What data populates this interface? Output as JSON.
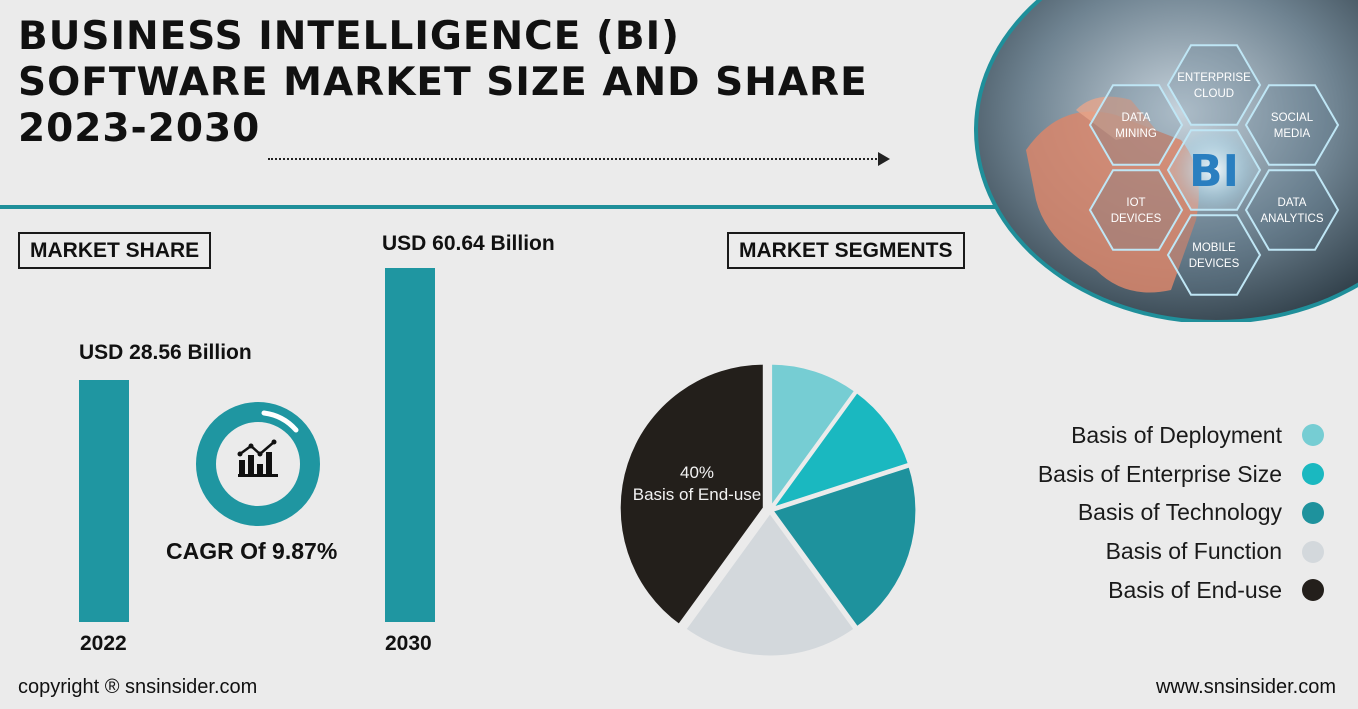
{
  "title": {
    "line1": "BUSINESS INTELLIGENCE (BI)",
    "line2": "SOFTWARE MARKET SIZE AND SHARE",
    "line3": "2023-2030"
  },
  "hero": {
    "center": "BI",
    "hexes": [
      {
        "line1": "ENTERPRISE",
        "line2": "CLOUD"
      },
      {
        "line1": "DATA",
        "line2": "MINING"
      },
      {
        "line1": "SOCIAL",
        "line2": "MEDIA"
      },
      {
        "line1": "IOT",
        "line2": "DEVICES"
      },
      {
        "line1": "DATA",
        "line2": "ANALYTICS"
      },
      {
        "line1": "MOBILE",
        "line2": "DEVICES"
      }
    ]
  },
  "market_share": {
    "label": "MARKET SHARE",
    "cagr": "CAGR Of 9.87%",
    "bars": [
      {
        "year": "2022",
        "value_label": "USD 28.56 Billion"
      },
      {
        "year": "2030",
        "value_label": "USD 60.64 Billion"
      }
    ]
  },
  "segments": {
    "label": "MARKET SEGMENTS",
    "end_use_pct": "40%",
    "end_use_text": "Basis of End-use"
  },
  "footer": {
    "copyright": "copyright ® snsinsider.com",
    "website": "www.snsinsider.com"
  },
  "colors": {
    "teal": "#1f96a1",
    "pie": [
      "#76cdd3",
      "#1ab8c0",
      "#1e929d",
      "#d3d8dc",
      "#231f1b"
    ]
  },
  "chart_data": [
    {
      "type": "bar",
      "categories": [
        "2022",
        "2030"
      ],
      "values": [
        28.56,
        60.64
      ],
      "data_labels": [
        "USD 28.56 Billion",
        "USD 60.64 Billion"
      ],
      "ylim": [
        0,
        60.64
      ]
    },
    {
      "type": "pie",
      "categories": [
        "Basis of Deployment",
        "Basis of Enterprise Size",
        "Basis of Technology",
        "Basis of Function",
        "Basis of End-use"
      ],
      "values": [
        10,
        10,
        20,
        20,
        40
      ],
      "colors": [
        "#76cdd3",
        "#1ab8c0",
        "#1e929d",
        "#d3d8dc",
        "#231f1b"
      ],
      "legend": "right"
    }
  ]
}
